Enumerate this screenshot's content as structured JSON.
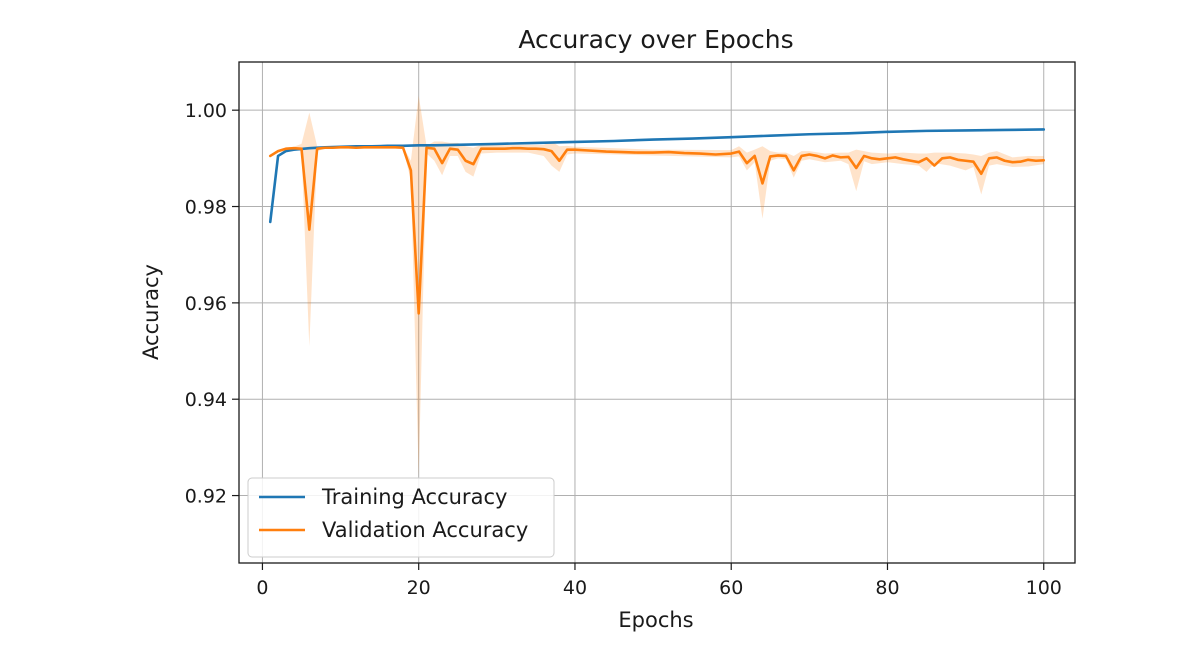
{
  "chart_data": {
    "type": "line",
    "title": "Accuracy over Epochs",
    "xlabel": "Epochs",
    "ylabel": "Accuracy",
    "xlim": [
      -3,
      104
    ],
    "ylim": [
      0.906,
      1.01
    ],
    "x_ticks": [
      0,
      20,
      40,
      60,
      80,
      100
    ],
    "y_ticks": [
      0.92,
      0.94,
      0.96,
      0.98,
      1.0
    ],
    "y_tick_labels": [
      "0.92",
      "0.94",
      "0.96",
      "0.98",
      "1.00"
    ],
    "grid": true,
    "legend_position": "lower-left",
    "series": [
      {
        "name": "Training Accuracy",
        "color": "#1f77b4",
        "x": [
          1,
          2,
          3,
          4,
          6,
          8,
          10,
          12,
          14,
          16,
          18,
          20,
          22,
          25,
          30,
          35,
          40,
          45,
          50,
          55,
          60,
          65,
          70,
          75,
          80,
          85,
          90,
          95,
          100
        ],
        "y": [
          0.9768,
          0.9905,
          0.9915,
          0.9918,
          0.9921,
          0.9923,
          0.9924,
          0.9925,
          0.9925,
          0.9926,
          0.9926,
          0.9927,
          0.9927,
          0.9928,
          0.993,
          0.9932,
          0.9934,
          0.9936,
          0.9939,
          0.9941,
          0.9944,
          0.9947,
          0.995,
          0.9952,
          0.9955,
          0.9957,
          0.9958,
          0.9959,
          0.996
        ]
      },
      {
        "name": "Validation Accuracy",
        "color": "#ff7f0e",
        "x": [
          1,
          2,
          3,
          4,
          5,
          6,
          7,
          8,
          9,
          10,
          11,
          12,
          13,
          14,
          15,
          16,
          17,
          18,
          19,
          20,
          21,
          22,
          23,
          24,
          25,
          26,
          27,
          28,
          29,
          30,
          31,
          32,
          33,
          34,
          35,
          36,
          37,
          38,
          39,
          40,
          42,
          44,
          46,
          48,
          50,
          52,
          54,
          56,
          58,
          60,
          61,
          62,
          63,
          64,
          65,
          66,
          67,
          68,
          69,
          70,
          71,
          72,
          73,
          74,
          75,
          76,
          77,
          78,
          79,
          80,
          81,
          82,
          83,
          84,
          85,
          86,
          87,
          88,
          89,
          90,
          91,
          92,
          93,
          94,
          95,
          96,
          97,
          98,
          99,
          100
        ],
        "y": [
          0.9905,
          0.9915,
          0.992,
          0.9921,
          0.992,
          0.9752,
          0.992,
          0.9922,
          0.9922,
          0.9923,
          0.9923,
          0.9922,
          0.9923,
          0.9923,
          0.9923,
          0.9923,
          0.9923,
          0.9922,
          0.9875,
          0.9578,
          0.9922,
          0.992,
          0.989,
          0.992,
          0.9918,
          0.9895,
          0.9888,
          0.992,
          0.992,
          0.992,
          0.992,
          0.9921,
          0.9921,
          0.992,
          0.992,
          0.9919,
          0.9915,
          0.9895,
          0.9918,
          0.9918,
          0.9916,
          0.9914,
          0.9913,
          0.9912,
          0.9912,
          0.9913,
          0.9911,
          0.991,
          0.9908,
          0.991,
          0.9914,
          0.989,
          0.9905,
          0.9848,
          0.9904,
          0.9906,
          0.9905,
          0.9875,
          0.9905,
          0.9908,
          0.9905,
          0.99,
          0.9906,
          0.9902,
          0.9903,
          0.988,
          0.9905,
          0.99,
          0.9898,
          0.99,
          0.9902,
          0.9898,
          0.9895,
          0.9892,
          0.99,
          0.9885,
          0.99,
          0.9902,
          0.9897,
          0.9895,
          0.9893,
          0.9868,
          0.99,
          0.9902,
          0.9895,
          0.9892,
          0.9893,
          0.9897,
          0.9895,
          0.9896
        ],
        "band_x": [
          1,
          2,
          3,
          4,
          5,
          6,
          7,
          8,
          10,
          12,
          14,
          16,
          18,
          19,
          20,
          21,
          22,
          23,
          24,
          25,
          26,
          27,
          28,
          30,
          34,
          36,
          37,
          38,
          39,
          40,
          50,
          60,
          61,
          62,
          63,
          64,
          65,
          66,
          67,
          68,
          69,
          70,
          72,
          74,
          75,
          76,
          77,
          78,
          80,
          82,
          84,
          85,
          86,
          88,
          90,
          91,
          92,
          93,
          94,
          96,
          98,
          100
        ],
        "band_low": [
          0.9903,
          0.9913,
          0.9918,
          0.9918,
          0.9915,
          0.951,
          0.9915,
          0.992,
          0.9921,
          0.992,
          0.9921,
          0.9921,
          0.992,
          0.9855,
          0.924,
          0.991,
          0.9895,
          0.9865,
          0.9905,
          0.9905,
          0.9872,
          0.9862,
          0.991,
          0.9912,
          0.9912,
          0.9905,
          0.9885,
          0.9872,
          0.9908,
          0.991,
          0.9906,
          0.9902,
          0.9904,
          0.9875,
          0.9892,
          0.9775,
          0.9895,
          0.99,
          0.9898,
          0.986,
          0.9895,
          0.9898,
          0.9892,
          0.9895,
          0.9888,
          0.9832,
          0.9894,
          0.9888,
          0.9892,
          0.9888,
          0.9885,
          0.9872,
          0.989,
          0.9885,
          0.9875,
          0.9882,
          0.9825,
          0.9885,
          0.9888,
          0.9882,
          0.9883,
          0.9888
        ],
        "band_high": [
          0.9907,
          0.9917,
          0.9922,
          0.9924,
          0.993,
          0.9995,
          0.9925,
          0.9924,
          0.9925,
          0.9924,
          0.9925,
          0.9925,
          0.9924,
          0.9895,
          1.003,
          0.9926,
          0.9935,
          0.9935,
          0.9932,
          0.9932,
          0.9925,
          0.9922,
          0.9928,
          0.9928,
          0.9928,
          0.9928,
          0.9935,
          0.9925,
          0.9926,
          0.9924,
          0.9918,
          0.9917,
          0.9925,
          0.9912,
          0.9918,
          0.9925,
          0.9915,
          0.9912,
          0.9912,
          0.9905,
          0.9915,
          0.9915,
          0.991,
          0.9912,
          0.9912,
          0.9918,
          0.9915,
          0.9912,
          0.991,
          0.9912,
          0.991,
          0.991,
          0.9912,
          0.9912,
          0.991,
          0.9908,
          0.9905,
          0.9912,
          0.9915,
          0.9902,
          0.9905,
          0.9905
        ]
      }
    ]
  }
}
